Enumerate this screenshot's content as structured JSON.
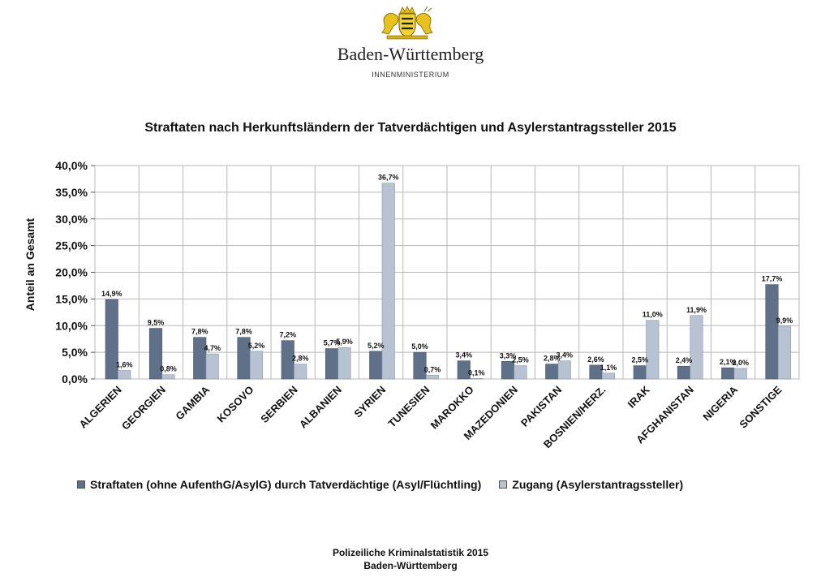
{
  "header": {
    "state_name": "Baden-Württemberg",
    "ministry": "INNENMINISTERIUM"
  },
  "colors": {
    "series1": "#5f7189",
    "series2": "#b7c3d2",
    "grid": "#b8b8b8",
    "coat_gold": "#e8c21a"
  },
  "chart_data": {
    "type": "bar",
    "title": "Straftaten nach Herkunftsländern der Tatverdächtigen und Asylerstantragssteller 2015",
    "xlabel": "",
    "ylabel": "Anteil an Gesamt",
    "ylim": [
      0,
      40
    ],
    "yticks": [
      0,
      5,
      10,
      15,
      20,
      25,
      30,
      35,
      40
    ],
    "ytick_labels": [
      "0,0%",
      "5,0%",
      "10,0%",
      "15,0%",
      "20,0%",
      "25,0%",
      "30,0%",
      "35,0%",
      "40,0%"
    ],
    "grid": true,
    "legend_position": "bottom",
    "categories": [
      "ALGERIEN",
      "GEORGIEN",
      "GAMBIA",
      "KOSOVO",
      "SERBIEN",
      "ALBANIEN",
      "SYRIEN",
      "TUNESIEN",
      "MAROKKO",
      "MAZEDONIEN",
      "PAKISTAN",
      "BOSNIEN/HERZ.",
      "IRAK",
      "AFGHANISTAN",
      "NIGERIA",
      "SONSTIGE"
    ],
    "series": [
      {
        "name": "Straftaten (ohne AufenthG/AsylG) durch Tatverdächtige (Asyl/Flüchtling)",
        "values": [
          14.9,
          9.5,
          7.8,
          7.8,
          7.2,
          5.7,
          5.2,
          5.0,
          3.4,
          3.3,
          2.8,
          2.6,
          2.5,
          2.4,
          2.1,
          17.7
        ],
        "labels": [
          "14,9%",
          "9,5%",
          "7,8%",
          "7,8%",
          "7,2%",
          "5,7%",
          "5,2%",
          "5,0%",
          "3,4%",
          "3,3%",
          "2,8%",
          "2,6%",
          "2,5%",
          "2,4%",
          "2,1%",
          "17,7%"
        ]
      },
      {
        "name": "Zugang (Asylerstantragssteller)",
        "values": [
          1.6,
          0.8,
          4.7,
          5.2,
          2.8,
          5.9,
          36.7,
          0.7,
          0.1,
          2.5,
          3.4,
          1.1,
          11.0,
          11.9,
          2.0,
          9.9
        ],
        "labels": [
          "1,6%",
          "0,8%",
          "4,7%",
          "5,2%",
          "2,8%",
          "5,9%",
          "36,7%",
          "0,7%",
          "0,1%",
          "2,5%",
          "3,4%",
          "1,1%",
          "11,0%",
          "11,9%",
          "2,0%",
          "9,9%"
        ]
      }
    ]
  },
  "footer": {
    "line1": "Polizeiliche Kriminalstatistik 2015",
    "line2": "Baden-Württemberg"
  }
}
